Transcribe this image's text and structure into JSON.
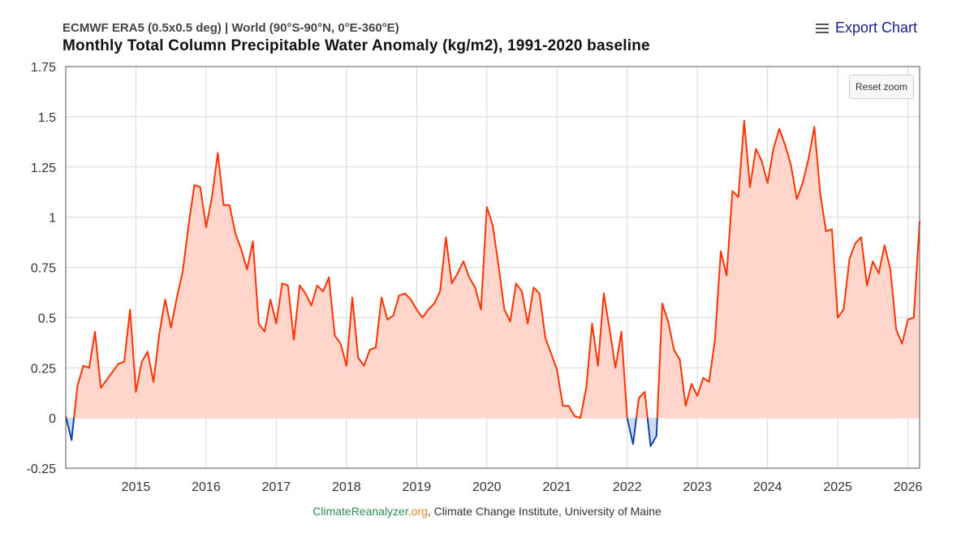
{
  "header": {
    "subtitle": "ECMWF ERA5 (0.5x0.5 deg) | World (90°S-90°N, 0°E-360°E)",
    "title": "Monthly Total Column Precipitable Water Anomaly (kg/m2), 1991-2020 baseline",
    "export_label": "Export Chart",
    "reset_label": "Reset zoom"
  },
  "credits": {
    "brand": "ClimateReanalyzer",
    "org": ".org",
    "rest": ", Climate Change Institute, University of Maine"
  },
  "colors": {
    "positive_line": "#ff3300",
    "positive_fill": "#ffd5cc",
    "negative_line": "#1144aa",
    "negative_fill": "#cfdcf0",
    "grid": "#d8d8d8"
  },
  "chart_data": {
    "type": "area",
    "title": "Monthly Total Column Precipitable Water Anomaly (kg/m2), 1991-2020 baseline",
    "xlabel": "",
    "ylabel": "",
    "ylim": [
      -0.25,
      1.75
    ],
    "yticks": [
      -0.25,
      0,
      0.25,
      0.5,
      0.75,
      1,
      1.25,
      1.5,
      1.75
    ],
    "ytick_labels": [
      "-0.25",
      "0",
      "0.25",
      "0.5",
      "0.75",
      "1",
      "1.25",
      "1.5",
      "1.75"
    ],
    "xticks": [
      2015,
      2016,
      2017,
      2018,
      2019,
      2020,
      2021,
      2022,
      2023,
      2024,
      2025,
      2026
    ],
    "xtick_labels": [
      "2015",
      "2016",
      "2017",
      "2018",
      "2019",
      "2020",
      "2021",
      "2022",
      "2023",
      "2024",
      "2025",
      "2026"
    ],
    "start_year": 2014,
    "start_month": 1,
    "values": [
      0.01,
      -0.11,
      0.16,
      0.26,
      0.25,
      0.43,
      0.15,
      0.19,
      0.23,
      0.27,
      0.28,
      0.54,
      0.13,
      0.28,
      0.33,
      0.18,
      0.42,
      0.59,
      0.45,
      0.6,
      0.73,
      0.96,
      1.16,
      1.15,
      0.95,
      1.1,
      1.32,
      1.06,
      1.06,
      0.92,
      0.84,
      0.74,
      0.88,
      0.47,
      0.43,
      0.59,
      0.47,
      0.67,
      0.66,
      0.39,
      0.66,
      0.62,
      0.56,
      0.66,
      0.63,
      0.7,
      0.41,
      0.37,
      0.26,
      0.6,
      0.3,
      0.26,
      0.34,
      0.35,
      0.6,
      0.49,
      0.51,
      0.61,
      0.62,
      0.59,
      0.54,
      0.5,
      0.54,
      0.57,
      0.63,
      0.9,
      0.67,
      0.72,
      0.78,
      0.7,
      0.65,
      0.54,
      1.05,
      0.96,
      0.76,
      0.54,
      0.48,
      0.67,
      0.63,
      0.47,
      0.65,
      0.62,
      0.4,
      0.32,
      0.24,
      0.06,
      0.06,
      0.01,
      0.0,
      0.15,
      0.47,
      0.26,
      0.62,
      0.44,
      0.25,
      0.43,
      0.0,
      -0.13,
      0.1,
      0.13,
      -0.14,
      -0.09,
      0.57,
      0.48,
      0.34,
      0.29,
      0.06,
      0.17,
      0.11,
      0.2,
      0.18,
      0.39,
      0.83,
      0.71,
      1.13,
      1.1,
      1.48,
      1.15,
      1.34,
      1.28,
      1.17,
      1.34,
      1.44,
      1.36,
      1.26,
      1.09,
      1.17,
      1.29,
      1.45,
      1.12,
      0.93,
      0.94,
      0.5,
      0.54,
      0.79,
      0.87,
      0.9,
      0.66,
      0.78,
      0.72,
      0.86,
      0.74,
      0.44,
      0.37,
      0.49,
      0.5,
      0.98
    ]
  }
}
